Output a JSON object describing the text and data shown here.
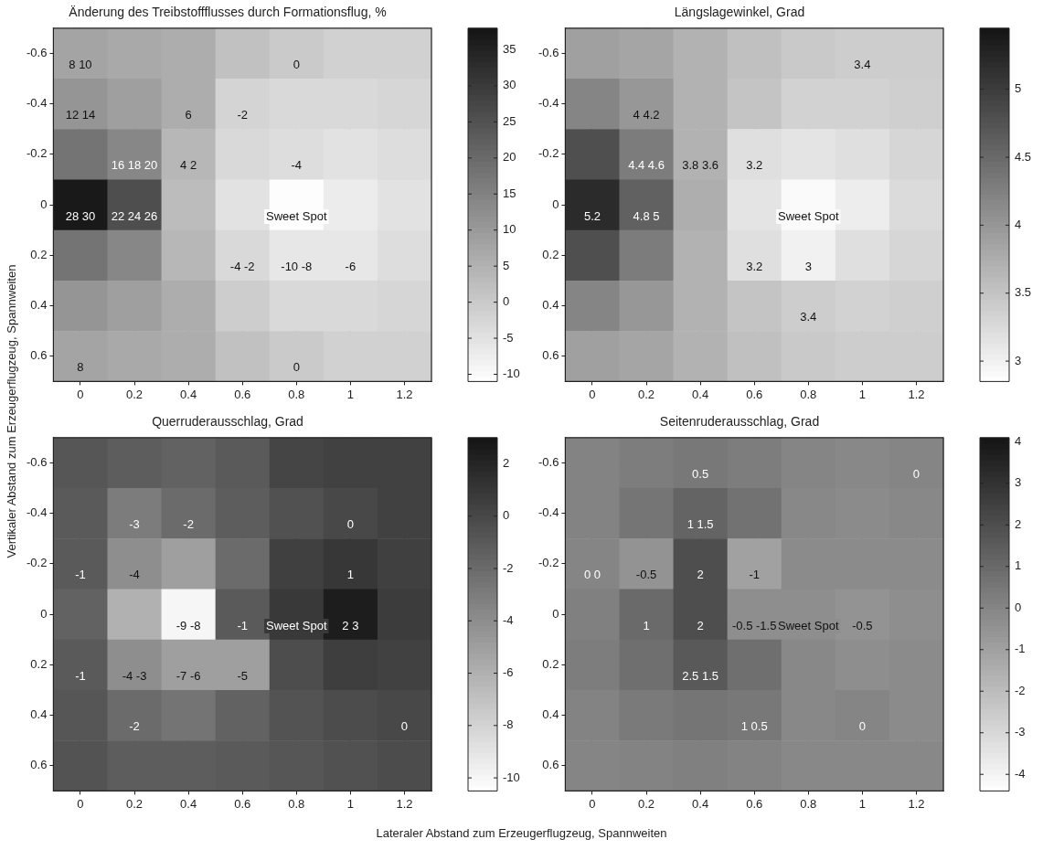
{
  "chart_data": [
    {
      "type": "heatmap",
      "title": "Änderung des Treibstoffflusses durch Formationsflug, %",
      "ylabel": "Vertikaler Abstand zum Erzeugerflugzeug, Spannweiten",
      "grid": true,
      "clim": [
        -11,
        38
      ],
      "cticks": [
        -10,
        -5,
        0,
        5,
        10,
        15,
        20,
        25,
        30,
        35
      ],
      "categories": [
        "0",
        "0.2",
        "0.4",
        "0.6",
        "0.8",
        "1",
        "1.2"
      ],
      "y_categories": [
        "-0.6",
        "-0.4",
        "-0.2",
        "0",
        "0.2",
        "0.4",
        "0.6"
      ],
      "cells": [
        [
          8,
          7,
          6,
          2,
          0,
          -1.5,
          -1.5
        ],
        [
          11,
          9,
          6,
          -2,
          -3,
          -3,
          -2.5
        ],
        [
          18,
          14,
          4,
          -3,
          -4,
          -5,
          -4
        ],
        [
          37,
          26,
          3,
          -5,
          -10.5,
          -7,
          -5
        ],
        [
          18,
          14,
          4,
          -3,
          -6,
          -6,
          -4
        ],
        [
          11,
          9,
          6,
          -0.5,
          -3,
          -3,
          -2.5
        ],
        [
          8,
          7,
          6,
          2,
          0,
          -1.5,
          -1.5
        ]
      ],
      "cell_labels": [
        [
          "8 10",
          null,
          null,
          null,
          "0",
          null,
          null
        ],
        [
          "12 14",
          null,
          "6",
          "-2",
          null,
          null,
          null
        ],
        [
          null,
          "16 18 20",
          "4 2",
          null,
          "-4",
          null,
          null
        ],
        [
          "28 30",
          "22 24 26",
          null,
          null,
          "Sweet Spot",
          null,
          null
        ],
        [
          null,
          null,
          null,
          "-4 -2",
          "-10 -8",
          "-6",
          null
        ],
        [
          null,
          null,
          null,
          null,
          null,
          null,
          null
        ],
        [
          "8",
          null,
          null,
          null,
          "0",
          null,
          null
        ]
      ]
    },
    {
      "type": "heatmap",
      "title": "Längslagewinkel, Grad",
      "grid": true,
      "clim": [
        2.85,
        5.45
      ],
      "cticks": [
        3,
        3.5,
        4,
        4.5,
        5
      ],
      "categories": [
        "0",
        "0.2",
        "0.4",
        "0.6",
        "0.8",
        "1",
        "1.2"
      ],
      "y_categories": [
        "-0.6",
        "-0.4",
        "-0.2",
        "0",
        "0.2",
        "0.4",
        "0.6"
      ],
      "cells": [
        [
          3.9,
          3.85,
          3.7,
          3.55,
          3.45,
          3.4,
          3.4
        ],
        [
          4.2,
          4,
          3.7,
          3.5,
          3.35,
          3.35,
          3.38
        ],
        [
          4.8,
          4.3,
          3.7,
          3.2,
          3.15,
          3.2,
          3.3
        ],
        [
          5.2,
          4.6,
          3.75,
          3.15,
          2.9,
          3.05,
          3.25
        ],
        [
          4.8,
          4.3,
          3.7,
          3.2,
          3,
          3.2,
          3.3
        ],
        [
          4.2,
          4,
          3.7,
          3.5,
          3.4,
          3.35,
          3.38
        ],
        [
          3.9,
          3.85,
          3.7,
          3.55,
          3.45,
          3.4,
          3.4
        ]
      ],
      "cell_labels": [
        [
          null,
          null,
          null,
          null,
          null,
          "3.4",
          null
        ],
        [
          null,
          "4 4.2",
          null,
          null,
          null,
          null,
          null
        ],
        [
          null,
          "4.4 4.6",
          "3.8 3.6",
          "3.2",
          null,
          null,
          null
        ],
        [
          "5.2",
          "4.8 5",
          null,
          null,
          "Sweet Spot",
          null,
          null
        ],
        [
          null,
          null,
          null,
          "3.2",
          "3",
          null,
          null
        ],
        [
          null,
          null,
          null,
          null,
          "3.4",
          null,
          null
        ],
        [
          null,
          null,
          null,
          null,
          null,
          null,
          null
        ]
      ]
    },
    {
      "type": "heatmap",
      "title": "Querruderausschlag, Grad",
      "xlabel": "Lateraler Abstand zum Erzeugerflugzeug, Spannweiten",
      "grid": true,
      "clim": [
        -10.5,
        3
      ],
      "cticks": [
        -10,
        -8,
        -6,
        -4,
        -2,
        0,
        2
      ],
      "categories": [
        "0",
        "0.2",
        "0.4",
        "0.6",
        "0.8",
        "1",
        "1.2"
      ],
      "y_categories": [
        "-0.6",
        "-0.4",
        "-0.2",
        "0",
        "0.2",
        "0.4",
        "0.6"
      ],
      "cells": [
        [
          -0.8,
          -1.2,
          -1.5,
          -1,
          0.2,
          0.4,
          0.4
        ],
        [
          -1,
          -3,
          -2,
          -1.2,
          -0.5,
          0,
          0.4
        ],
        [
          -1,
          -4,
          -5,
          -2,
          0.5,
          1,
          0.5
        ],
        [
          -1.5,
          -6,
          -10,
          -1,
          0.9,
          2.5,
          0.7
        ],
        [
          -1,
          -4,
          -5,
          -5,
          -0.3,
          0.6,
          0.4
        ],
        [
          -0.8,
          -2,
          -2.5,
          -1.5,
          -0.6,
          -0.2,
          0
        ],
        [
          -0.6,
          -1.2,
          -1.2,
          -1,
          -0.8,
          -0.5,
          -0.2
        ]
      ],
      "cell_labels": [
        [
          null,
          null,
          null,
          null,
          null,
          null,
          null
        ],
        [
          null,
          "-3",
          "-2",
          null,
          null,
          "0",
          null
        ],
        [
          "-1",
          "-4",
          null,
          null,
          null,
          "1",
          null
        ],
        [
          null,
          null,
          "-9 -8",
          "-1",
          "Sweet Spot",
          "2 3",
          null
        ],
        [
          "-1",
          "-4 -3",
          "-7 -6",
          "-5",
          null,
          null,
          null
        ],
        [
          null,
          "-2",
          null,
          null,
          null,
          null,
          "0"
        ],
        [
          null,
          null,
          null,
          null,
          null,
          null,
          null
        ]
      ]
    },
    {
      "type": "heatmap",
      "title": "Seitenruderausschlag, Grad",
      "grid": true,
      "clim": [
        -4.4,
        4.1
      ],
      "cticks": [
        -4,
        -3,
        -2,
        -1,
        0,
        1,
        2,
        3,
        4
      ],
      "categories": [
        "0",
        "0.2",
        "0.4",
        "0.6",
        "0.8",
        "1",
        "1.2"
      ],
      "y_categories": [
        "-0.6",
        "-0.4",
        "-0.2",
        "0",
        "0.2",
        "0.4",
        "0.6"
      ],
      "cells": [
        [
          0.1,
          0.3,
          0.5,
          0.3,
          0,
          -0.1,
          0
        ],
        [
          0.1,
          0.6,
          1.2,
          0.7,
          -0.1,
          -0.2,
          -0.1
        ],
        [
          0,
          -0.5,
          2,
          -1,
          -0.2,
          -0.2,
          -0.2
        ],
        [
          0.2,
          1,
          2,
          -0.3,
          -0.3,
          -0.5,
          -0.3
        ],
        [
          0.3,
          0.8,
          1.6,
          0.8,
          -0.1,
          -0.3,
          -0.2
        ],
        [
          0.1,
          0.4,
          0.6,
          0.5,
          -0.1,
          0,
          -0.2
        ],
        [
          0,
          0.1,
          0.2,
          0.1,
          -0.1,
          -0.1,
          -0.1
        ]
      ],
      "cell_labels": [
        [
          null,
          null,
          "0.5",
          null,
          null,
          null,
          "0"
        ],
        [
          null,
          null,
          "1 1.5",
          null,
          null,
          null,
          null
        ],
        [
          "0 0",
          "-0.5",
          "2",
          "-1",
          null,
          null,
          null
        ],
        [
          null,
          "1",
          "2",
          "-0.5 -1.5",
          "Sweet Spot",
          "-0.5",
          null
        ],
        [
          null,
          null,
          "2.5 1.5",
          null,
          null,
          null,
          null
        ],
        [
          null,
          null,
          null,
          "1 0.5",
          null,
          "0",
          null
        ],
        [
          null,
          null,
          null,
          null,
          null,
          null,
          null
        ]
      ]
    }
  ]
}
